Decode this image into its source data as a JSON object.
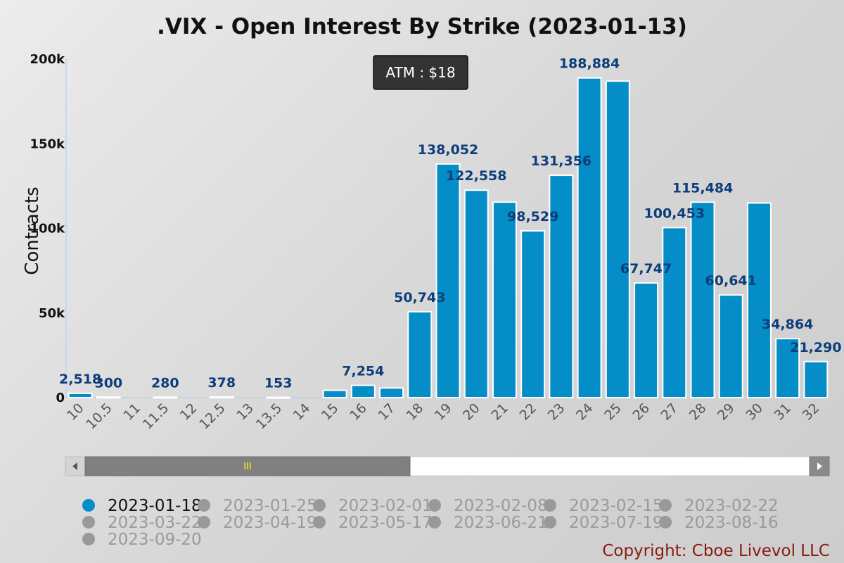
{
  "chart_data": {
    "type": "bar",
    "title": ".VIX - Open Interest By Strike (2023-01-13)",
    "ylabel": "Contracts",
    "xlabel": "",
    "ylim": [
      0,
      200000
    ],
    "yticks": [
      {
        "value": 0,
        "label": "0"
      },
      {
        "value": 50000,
        "label": "50k"
      },
      {
        "value": 100000,
        "label": "100k"
      },
      {
        "value": 150000,
        "label": "150k"
      },
      {
        "value": 200000,
        "label": "200k"
      }
    ],
    "categories": [
      "10",
      "10.5",
      "11",
      "11.5",
      "12",
      "12.5",
      "13",
      "13.5",
      "14",
      "15",
      "16",
      "17",
      "18",
      "19",
      "20",
      "21",
      "22",
      "23",
      "24",
      "25",
      "26",
      "27",
      "28",
      "29",
      "30",
      "31",
      "32"
    ],
    "values": [
      2518,
      300,
      0,
      280,
      0,
      378,
      0,
      153,
      0,
      4300,
      7254,
      5700,
      50743,
      138052,
      122558,
      115500,
      98529,
      131356,
      188884,
      187000,
      67747,
      100453,
      115484,
      60641,
      115000,
      34864,
      21290
    ],
    "data_labels": [
      "2,518",
      "300",
      "",
      "280",
      "",
      "378",
      "",
      "153",
      "",
      "",
      "7,254",
      "",
      "50,743",
      "138,052",
      "122,558",
      "",
      "98,529",
      "131,356",
      "188,884",
      "",
      "67,747",
      "100,453",
      "115,484",
      "60,641",
      "",
      "34,864",
      "21,290"
    ],
    "bar_color": "#058dc7",
    "label_color": "#0d3d7a",
    "grid": false,
    "annotation": "ATM : $18",
    "legend_position": "bottom-left",
    "legend": [
      {
        "label": "2023-01-18",
        "color": "#058dc7",
        "active": true
      },
      {
        "label": "2023-01-25",
        "color": "#999999",
        "active": false
      },
      {
        "label": "2023-02-01",
        "color": "#999999",
        "active": false
      },
      {
        "label": "2023-02-08",
        "color": "#999999",
        "active": false
      },
      {
        "label": "2023-02-15",
        "color": "#999999",
        "active": false
      },
      {
        "label": "2023-02-22",
        "color": "#999999",
        "active": false
      },
      {
        "label": "2023-03-22",
        "color": "#999999",
        "active": false
      },
      {
        "label": "2023-04-19",
        "color": "#999999",
        "active": false
      },
      {
        "label": "2023-05-17",
        "color": "#999999",
        "active": false
      },
      {
        "label": "2023-06-21",
        "color": "#999999",
        "active": false
      },
      {
        "label": "2023-07-19",
        "color": "#999999",
        "active": false
      },
      {
        "label": "2023-08-16",
        "color": "#999999",
        "active": false
      },
      {
        "label": "2023-09-20",
        "color": "#999999",
        "active": false
      }
    ],
    "scrollbar": {
      "grip_label": "III",
      "grip_color": "#ffff00"
    },
    "copyright": "Copyright: Cboe Livevol LLC"
  }
}
